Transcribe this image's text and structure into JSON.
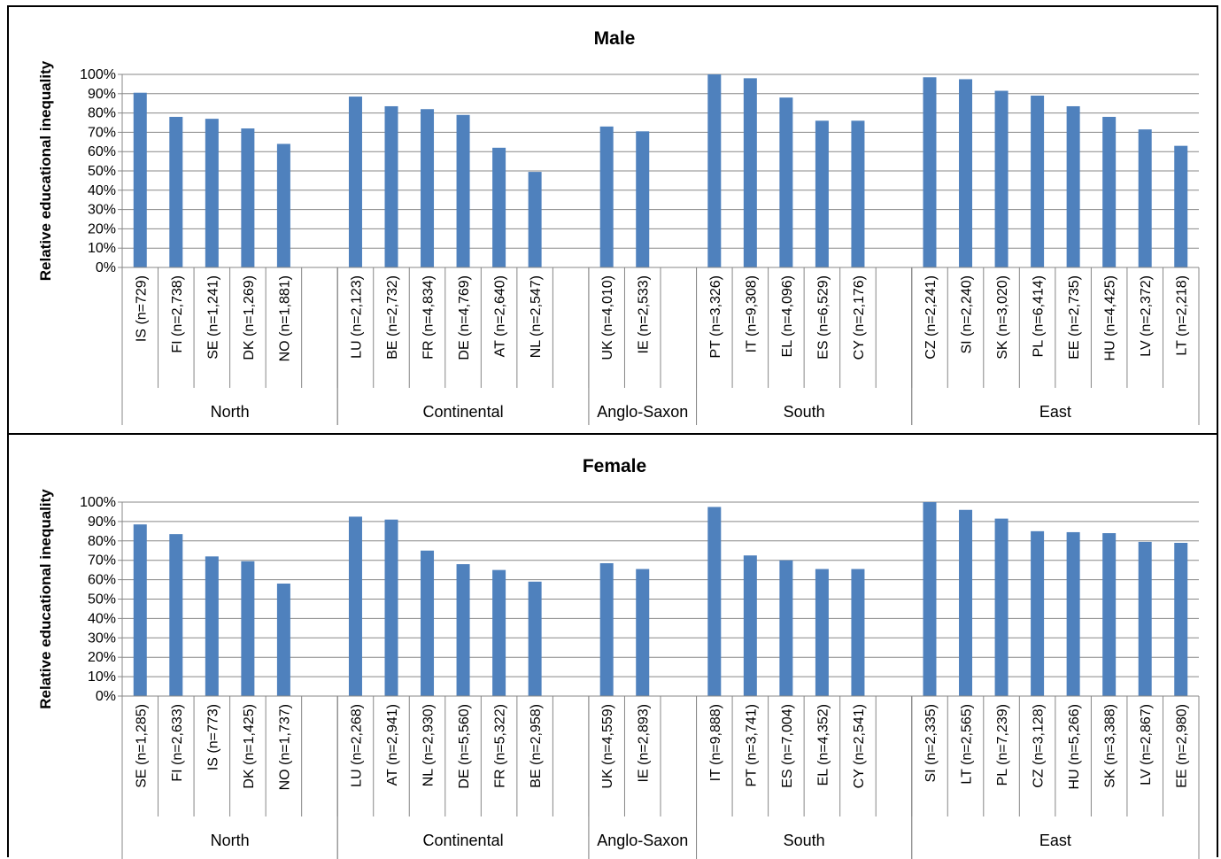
{
  "colors": {
    "bar": "#4f81bd",
    "grid": "#878787",
    "axis": "#878787",
    "text": "#000000"
  },
  "chart_data": [
    {
      "type": "bar",
      "title": "Male",
      "ylabel": "Relative educational inequality",
      "ylim": [
        0,
        100
      ],
      "yticks": [
        "0%",
        "10%",
        "20%",
        "30%",
        "40%",
        "50%",
        "60%",
        "70%",
        "80%",
        "90%",
        "100%"
      ],
      "grid": true,
      "groups": [
        {
          "name": "North",
          "categories": [
            "IS (n=729)",
            "FI (n=2,738)",
            "SE (n=1,241)",
            "DK (n=1,269)",
            "NO (n=1,881)",
            ""
          ],
          "values": [
            90.5,
            78,
            77,
            72,
            64,
            null
          ]
        },
        {
          "name": "Continental",
          "categories": [
            "LU (n=2,123)",
            "BE (n=2,732)",
            "FR (n=4,834)",
            "DE (n=4,769)",
            "AT (n=2,640)",
            "NL (n=2,547)",
            ""
          ],
          "values": [
            88.5,
            83.5,
            82,
            79,
            62,
            49.5,
            null
          ]
        },
        {
          "name": "Anglo-Saxon",
          "categories": [
            "UK (n=4,010)",
            "IE (n=2,533)",
            ""
          ],
          "values": [
            73,
            70.5,
            null
          ]
        },
        {
          "name": "South",
          "categories": [
            "PT (n=3,326)",
            "IT (n=9,308)",
            "EL (n=4,096)",
            "ES (n=6,529)",
            "CY (n=2,176)",
            ""
          ],
          "values": [
            100,
            98,
            88,
            76,
            76,
            null
          ]
        },
        {
          "name": "East",
          "categories": [
            "CZ (n=2,241)",
            "SI (n=2,240)",
            "SK (n=3,020)",
            "PL (n=6,414)",
            "EE (n=2,735)",
            "HU (n=4,425)",
            "LV (n=2,372)",
            "LT (n=2,218)"
          ],
          "values": [
            98.5,
            97.5,
            91.5,
            89,
            83.5,
            78,
            71.5,
            63
          ]
        }
      ]
    },
    {
      "type": "bar",
      "title": "Female",
      "ylabel": "Relative educational inequality",
      "ylim": [
        0,
        100
      ],
      "yticks": [
        "0%",
        "10%",
        "20%",
        "30%",
        "40%",
        "50%",
        "60%",
        "70%",
        "80%",
        "90%",
        "100%"
      ],
      "grid": true,
      "groups": [
        {
          "name": "North",
          "categories": [
            "SE (n=1,285)",
            "FI (n=2,633)",
            "IS (n=773)",
            "DK (n=1,425)",
            "NO (n=1,737)",
            ""
          ],
          "values": [
            88.5,
            83.5,
            72,
            69.5,
            58,
            null
          ]
        },
        {
          "name": "Continental",
          "categories": [
            "LU (n=2,268)",
            "AT (n=2,941)",
            "NL (n=2,930)",
            "DE (n=5,560)",
            "FR (n=5,322)",
            "BE (n=2,958)",
            ""
          ],
          "values": [
            92.5,
            91,
            75,
            68,
            65,
            59,
            null
          ]
        },
        {
          "name": "Anglo-Saxon",
          "categories": [
            "UK (n=4,559)",
            "IE (n=2,893)",
            ""
          ],
          "values": [
            68.5,
            65.5,
            null
          ]
        },
        {
          "name": "South",
          "categories": [
            "IT (n=9,888)",
            "PT (n=3,741)",
            "ES (n=7,004)",
            "EL (n=4,352)",
            "CY (n=2,541)",
            ""
          ],
          "values": [
            97.5,
            72.5,
            70,
            65.5,
            65.5,
            null
          ]
        },
        {
          "name": "East",
          "categories": [
            "SI (n=2,335)",
            "LT (n=2,565)",
            "PL (n=7,239)",
            "CZ (n=3,128)",
            "HU (n=5,266)",
            "SK (n=3,388)",
            "LV (n=2,867)",
            "EE (n=2,980)"
          ],
          "values": [
            100,
            96,
            91.5,
            85,
            84.5,
            84,
            79.5,
            79
          ]
        }
      ]
    }
  ]
}
